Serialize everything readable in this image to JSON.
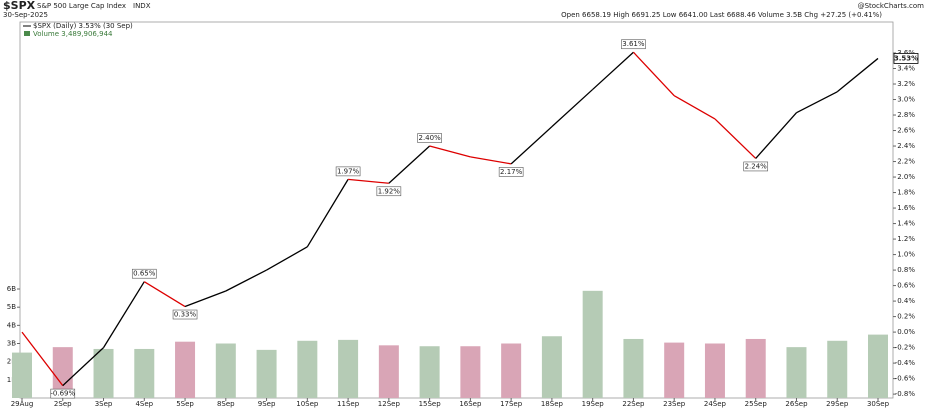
{
  "chart_data": {
    "type": "line",
    "symbol": "$SPX",
    "title": "S&P 500 Large Cap Index",
    "exchange": "INDX",
    "date": "30-Sep-2025",
    "quote": "Open 6658.19 High 6691.25 Low 6641.00 Last 6688.46 Volume 3.5B Chg +27.25 (+0.41%)",
    "source": "@StockCharts.com",
    "legend": [
      "$SPX (Daily) 3.53% (30 Sep)",
      "Volume 3,489,906,944"
    ],
    "categories": [
      "29Aug",
      "2Sep",
      "3Sep",
      "4Sep",
      "5Sep",
      "8Sep",
      "9Sep",
      "10Sep",
      "11Sep",
      "12Sep",
      "15Sep",
      "16Sep",
      "17Sep",
      "18Sep",
      "19Sep",
      "22Sep",
      "23Sep",
      "24Sep",
      "25Sep",
      "26Sep",
      "29Sep",
      "30Sep"
    ],
    "series": [
      {
        "name": "$SPX",
        "color": "#000000",
        "down_color": "#dd0000",
        "values": [
          0.0,
          -0.69,
          -0.2,
          0.65,
          0.33,
          0.53,
          0.8,
          1.1,
          1.97,
          1.92,
          2.4,
          2.26,
          2.17,
          2.65,
          3.13,
          3.61,
          3.05,
          2.75,
          2.24,
          2.83,
          3.1,
          3.53
        ],
        "value_labels": [
          null,
          "-0.69%",
          null,
          "0.65%",
          "0.33%",
          null,
          null,
          null,
          "1.97%",
          "1.92%",
          "2.40%",
          null,
          "2.17%",
          null,
          null,
          "3.61%",
          null,
          null,
          "2.24%",
          null,
          null,
          "3.53%"
        ]
      },
      {
        "name": "Volume",
        "axis": "y2",
        "up_color": "#b5cbb5",
        "down_color": "#d9a5b6",
        "values": [
          2.5,
          2.8,
          2.7,
          2.7,
          3.1,
          3.0,
          2.65,
          3.15,
          3.2,
          2.9,
          2.85,
          2.85,
          3.0,
          3.4,
          5.9,
          3.25,
          3.05,
          3.0,
          3.25,
          2.8,
          3.15,
          3.49
        ]
      }
    ],
    "ylim": [
      -0.85,
      4.0
    ],
    "yticks": [
      {
        "value": -0.8,
        "label": "-0.8%"
      },
      {
        "value": -0.6,
        "label": "-0.6%"
      },
      {
        "value": -0.4,
        "label": "-0.4%"
      },
      {
        "value": -0.2,
        "label": "-0.2%"
      },
      {
        "value": 0,
        "label": "0.0%"
      },
      {
        "value": 0.2,
        "label": "0.2%"
      },
      {
        "value": 0.4,
        "label": "0.4%"
      },
      {
        "value": 0.6,
        "label": "0.6%"
      },
      {
        "value": 0.8,
        "label": "0.8%"
      },
      {
        "value": 1,
        "label": "1.0%"
      },
      {
        "value": 1.2,
        "label": "1.2%"
      },
      {
        "value": 1.4,
        "label": "1.4%"
      },
      {
        "value": 1.6,
        "label": "1.6%"
      },
      {
        "value": 1.8,
        "label": "1.8%"
      },
      {
        "value": 2,
        "label": "2.0%"
      },
      {
        "value": 2.2,
        "label": "2.2%"
      },
      {
        "value": 2.4,
        "label": "2.4%"
      },
      {
        "value": 2.6,
        "label": "2.6%"
      },
      {
        "value": 2.8,
        "label": "2.8%"
      },
      {
        "value": 3,
        "label": "3.0%"
      },
      {
        "value": 3.2,
        "label": "3.2%"
      },
      {
        "value": 3.4,
        "label": "3.4%"
      },
      {
        "value": 3.6,
        "label": "3.6%"
      }
    ],
    "y2lim": [
      0,
      20.7
    ],
    "y2ticks": [
      {
        "value": 1,
        "label": "1B"
      },
      {
        "value": 2,
        "label": "2B"
      },
      {
        "value": 3,
        "label": "3B"
      },
      {
        "value": 4,
        "label": "4B"
      },
      {
        "value": 5,
        "label": "5B"
      },
      {
        "value": 6,
        "label": "6B"
      }
    ]
  }
}
